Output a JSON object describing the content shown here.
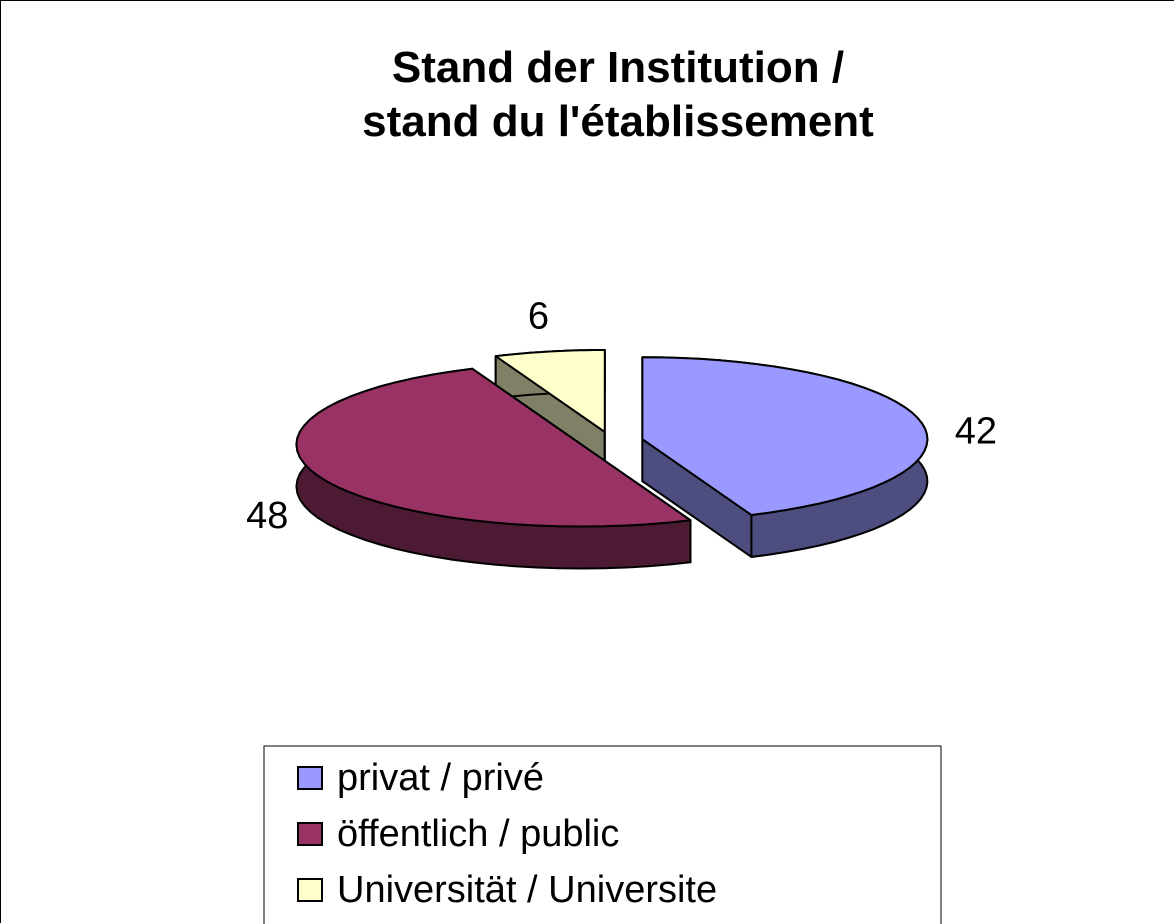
{
  "chart_data": {
    "type": "pie",
    "title": "Stand der Institution /\nstand du l'établissement",
    "categories": [
      "privat / privé",
      "öffentlich / public",
      "Universität / Universite"
    ],
    "values": [
      42,
      48,
      6
    ],
    "colors": [
      "#9999ff",
      "#993366",
      "#ffffcc"
    ],
    "legend": "bottom"
  }
}
